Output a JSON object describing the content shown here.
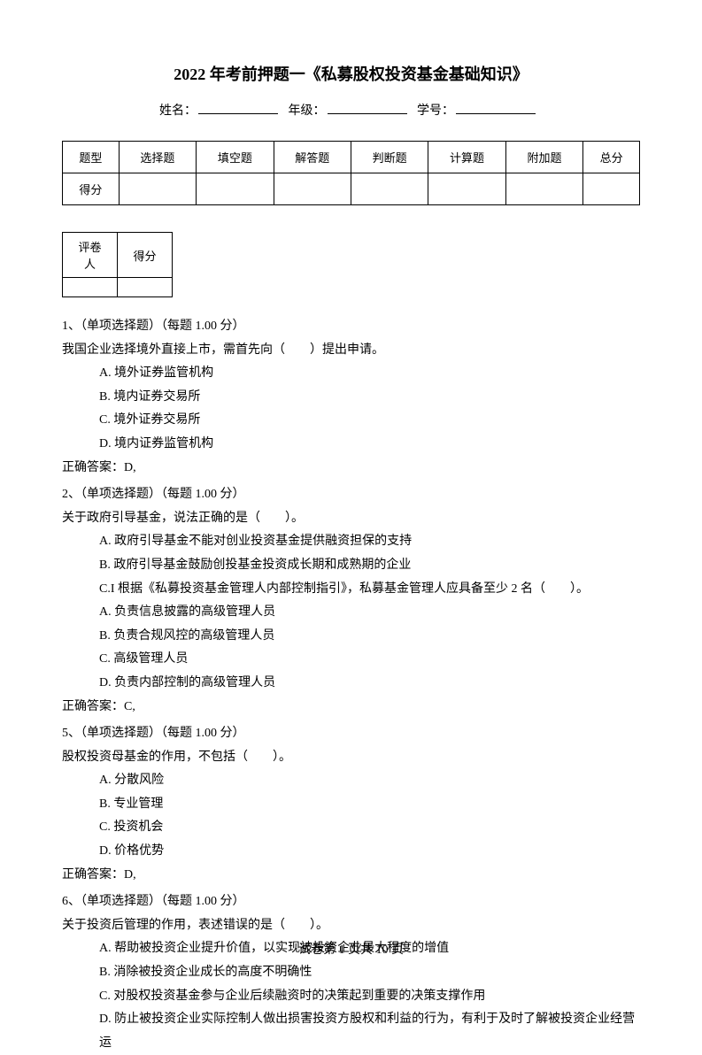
{
  "title": "2022 年考前押题一《私募股权投资基金基础知识》",
  "info": {
    "name_label": "姓名：",
    "grade_label": "年级：",
    "id_label": "学号："
  },
  "score_table": {
    "headers": [
      "题型",
      "选择题",
      "填空题",
      "解答题",
      "判断题",
      "计算题",
      "附加题",
      "总分"
    ],
    "row_label": "得分"
  },
  "grader_table": {
    "headers": [
      "评卷人",
      "得分"
    ]
  },
  "questions": [
    {
      "num": "1、",
      "type": "（单项选择题）（每题 1.00 分）",
      "stem": "我国企业选择境外直接上市，需首先向（　　）提出申请。",
      "options": [
        "A. 境外证券监管机构",
        "B. 境内证券交易所",
        "C. 境外证券交易所",
        "D. 境内证券监管机构"
      ],
      "answer": "正确答案：D,"
    },
    {
      "num": "2、",
      "type": "（单项选择题）（每题 1.00 分）",
      "stem": "关于政府引导基金，说法正确的是（　　）。",
      "options": [
        "A. 政府引导基金不能对创业投资基金提供融资担保的支持",
        "B. 政府引导基金鼓励创投基金投资成长期和成熟期的企业",
        "C.I 根据《私募投资基金管理人内部控制指引》，私募基金管理人应具备至少 2 名（　　）。",
        "A. 负责信息披露的高级管理人员",
        "B. 负责合规风控的高级管理人员",
        "C. 高级管理人员",
        "D. 负责内部控制的高级管理人员"
      ],
      "answer": "正确答案：C,"
    },
    {
      "num": "5、",
      "type": "（单项选择题）（每题 1.00 分）",
      "stem": "股权投资母基金的作用，不包括（　　）。",
      "options": [
        "A. 分散风险",
        "B. 专业管理",
        "C. 投资机会",
        "D. 价格优势"
      ],
      "answer": "正确答案：D,"
    },
    {
      "num": "6、",
      "type": "（单项选择题）（每题 1.00 分）",
      "stem": "关于投资后管理的作用，表述错误的是（　　）。",
      "options": [
        "A. 帮助被投资企业提升价值，以实现被投资企业最大程度的增值",
        "B. 消除被投资企业成长的高度不明确性",
        "C. 对股权投资基金参与企业后续融资时的决策起到重要的决策支撑作用",
        "D. 防止被投资企业实际控制人做出损害投资方股权和利益的行为，有利于及时了解被投资企业经营运"
      ],
      "answer": ""
    }
  ],
  "footer": "试卷第 1 页共 10 页"
}
